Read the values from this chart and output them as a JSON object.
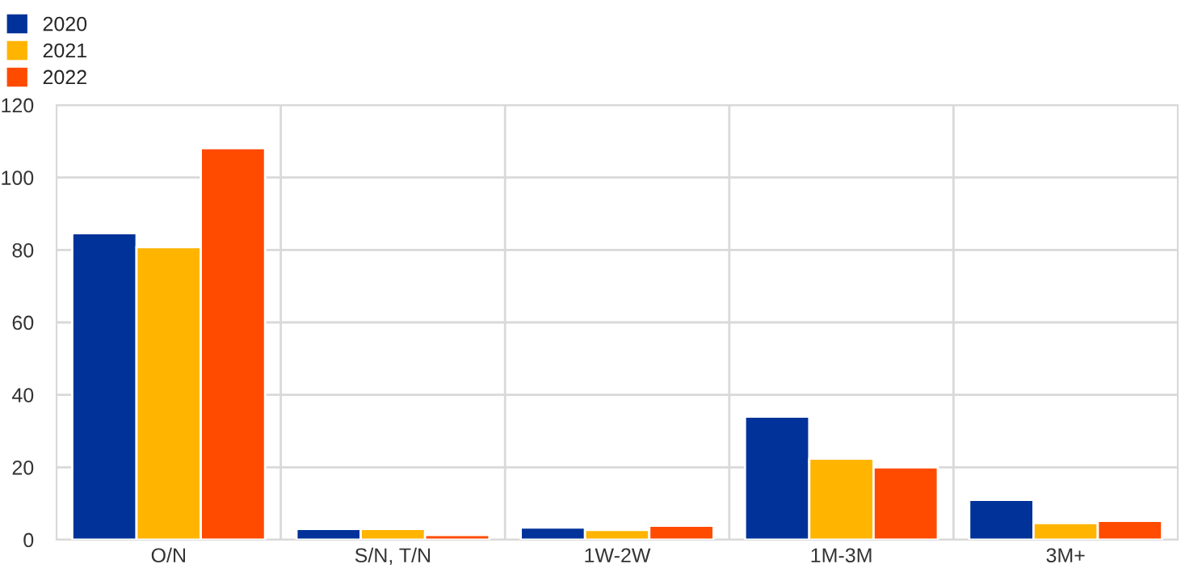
{
  "chart_data": {
    "type": "bar",
    "categories": [
      "O/N",
      "S/N, T/N",
      "1W-2W",
      "1M-3M",
      "3M+"
    ],
    "series": [
      {
        "name": "2020",
        "color": "#003299",
        "values": [
          84.6,
          3.0,
          3.4,
          34.0,
          11.0
        ]
      },
      {
        "name": "2021",
        "color": "#ffb400",
        "values": [
          80.8,
          3.0,
          2.7,
          22.4,
          4.6
        ]
      },
      {
        "name": "2022",
        "color": "#ff4b00",
        "values": [
          108.1,
          1.3,
          3.9,
          20.0,
          5.2
        ]
      }
    ],
    "ylim": [
      0,
      120
    ],
    "yticks": [
      0,
      20,
      40,
      60,
      80,
      100,
      120
    ],
    "grid": true,
    "legend": "top left"
  }
}
